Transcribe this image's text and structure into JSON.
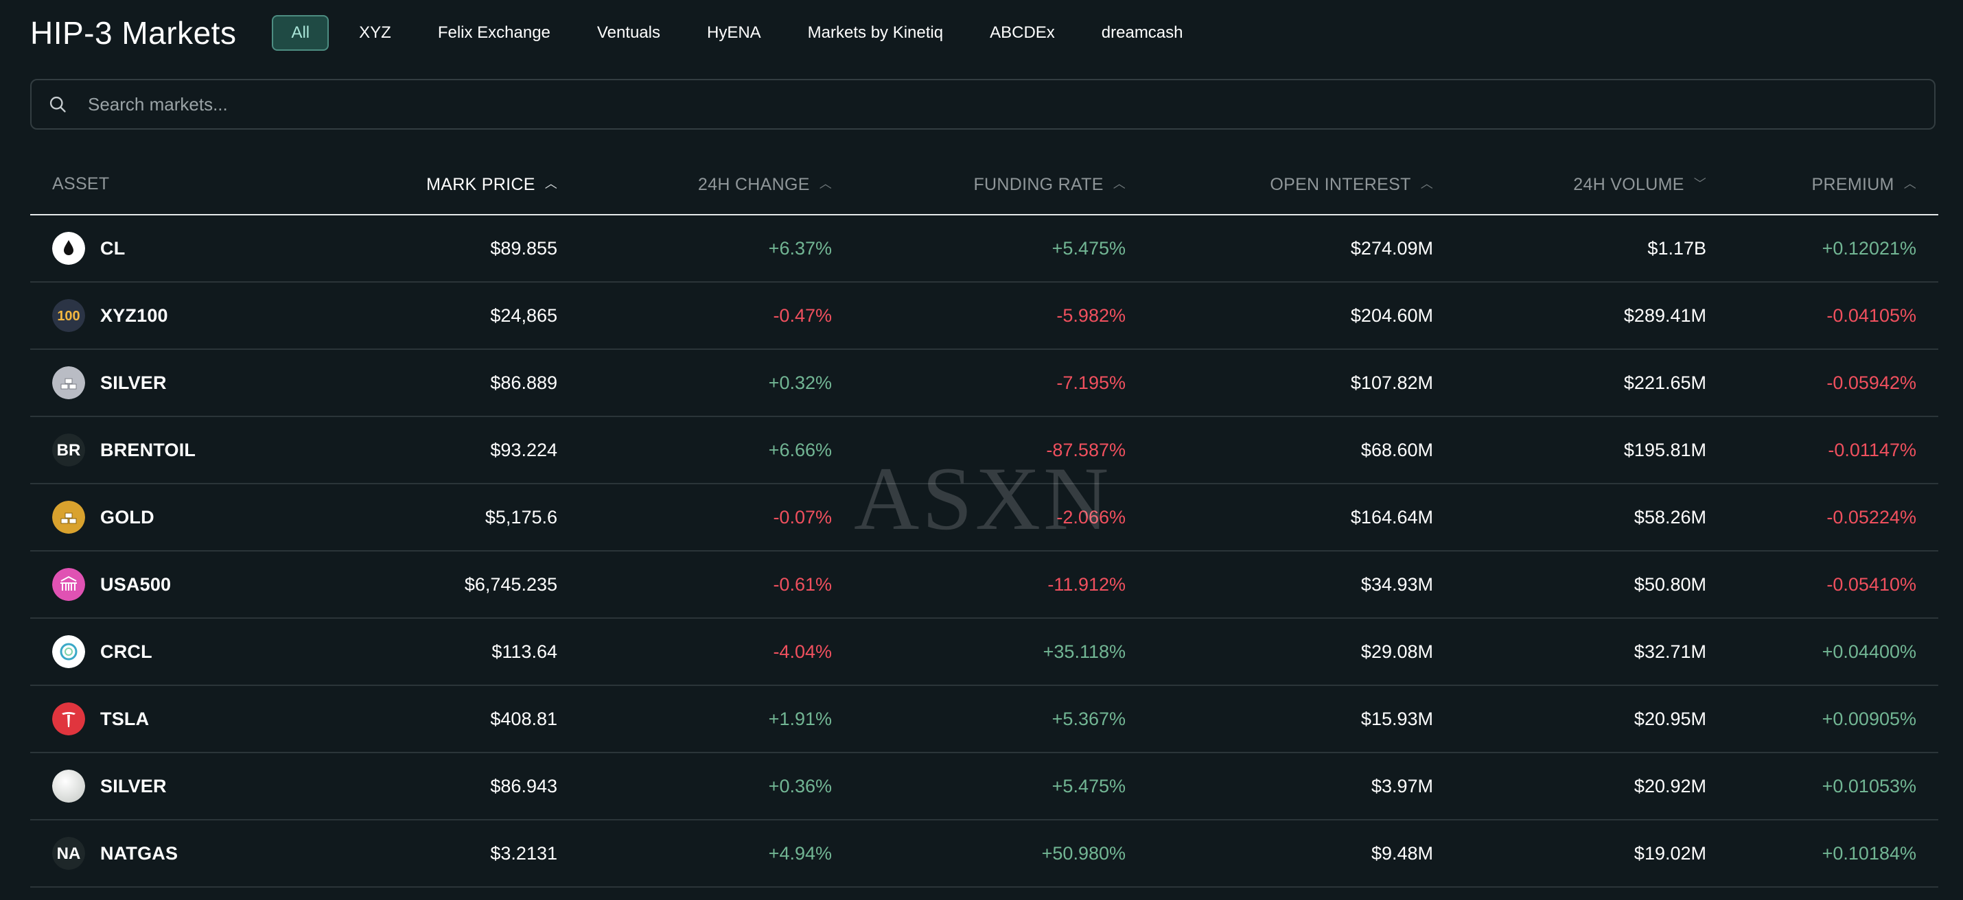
{
  "header": {
    "title": "HIP-3 Markets",
    "filters": [
      "All",
      "XYZ",
      "Felix Exchange",
      "Ventuals",
      "HyENA",
      "Markets by Kinetiq",
      "ABCDEx",
      "dreamcash"
    ]
  },
  "search": {
    "placeholder": "Search markets..."
  },
  "table": {
    "columns": {
      "asset": "ASSET",
      "mark_price": "MARK PRICE",
      "change_24h": "24H CHANGE",
      "funding_rate": "FUNDING RATE",
      "open_interest": "OPEN INTEREST",
      "volume_24h": "24H VOLUME",
      "premium": "PREMIUM"
    },
    "rows": [
      {
        "asset": "CL",
        "icon": "oil-drop-icon",
        "mark_price": "$89.855",
        "change_24h": "+6.37%",
        "funding_rate": "+5.475%",
        "open_interest": "$274.09M",
        "volume_24h": "$1.17B",
        "premium": "+0.12021%"
      },
      {
        "asset": "XYZ100",
        "icon": "xyz100-icon",
        "icon_text": "100",
        "mark_price": "$24,865",
        "change_24h": "-0.47%",
        "funding_rate": "-5.982%",
        "open_interest": "$204.60M",
        "volume_24h": "$289.41M",
        "premium": "-0.04105%"
      },
      {
        "asset": "SILVER",
        "icon": "silver-bars-icon",
        "mark_price": "$86.889",
        "change_24h": "+0.32%",
        "funding_rate": "-7.195%",
        "open_interest": "$107.82M",
        "volume_24h": "$221.65M",
        "premium": "-0.05942%"
      },
      {
        "asset": "BRENTOIL",
        "icon": "brentoil-icon",
        "icon_text": "BR",
        "mark_price": "$93.224",
        "change_24h": "+6.66%",
        "funding_rate": "-87.587%",
        "open_interest": "$68.60M",
        "volume_24h": "$195.81M",
        "premium": "-0.01147%"
      },
      {
        "asset": "GOLD",
        "icon": "gold-bars-icon",
        "mark_price": "$5,175.6",
        "change_24h": "-0.07%",
        "funding_rate": "-2.066%",
        "open_interest": "$164.64M",
        "volume_24h": "$58.26M",
        "premium": "-0.05224%"
      },
      {
        "asset": "USA500",
        "icon": "usa500-icon",
        "mark_price": "$6,745.235",
        "change_24h": "-0.61%",
        "funding_rate": "-11.912%",
        "open_interest": "$34.93M",
        "volume_24h": "$50.80M",
        "premium": "-0.05410%"
      },
      {
        "asset": "CRCL",
        "icon": "crcl-icon",
        "mark_price": "$113.64",
        "change_24h": "-4.04%",
        "funding_rate": "+35.118%",
        "open_interest": "$29.08M",
        "volume_24h": "$32.71M",
        "premium": "+0.04400%"
      },
      {
        "asset": "TSLA",
        "icon": "tesla-icon",
        "mark_price": "$408.81",
        "change_24h": "+1.91%",
        "funding_rate": "+5.367%",
        "open_interest": "$15.93M",
        "volume_24h": "$20.95M",
        "premium": "+0.00905%"
      },
      {
        "asset": "SILVER",
        "icon": "silver-coin-icon",
        "mark_price": "$86.943",
        "change_24h": "+0.36%",
        "funding_rate": "+5.475%",
        "open_interest": "$3.97M",
        "volume_24h": "$20.92M",
        "premium": "+0.01053%"
      },
      {
        "asset": "NATGAS",
        "icon": "natgas-icon",
        "icon_text": "NA",
        "mark_price": "$3.2131",
        "change_24h": "+4.94%",
        "funding_rate": "+50.980%",
        "open_interest": "$9.48M",
        "volume_24h": "$19.02M",
        "premium": "+0.10184%"
      }
    ]
  },
  "watermark": "ASXN",
  "colors": {
    "background": "#10191d",
    "positive": "#72b694",
    "negative": "#f0505e",
    "accent": "#1f4a44"
  }
}
